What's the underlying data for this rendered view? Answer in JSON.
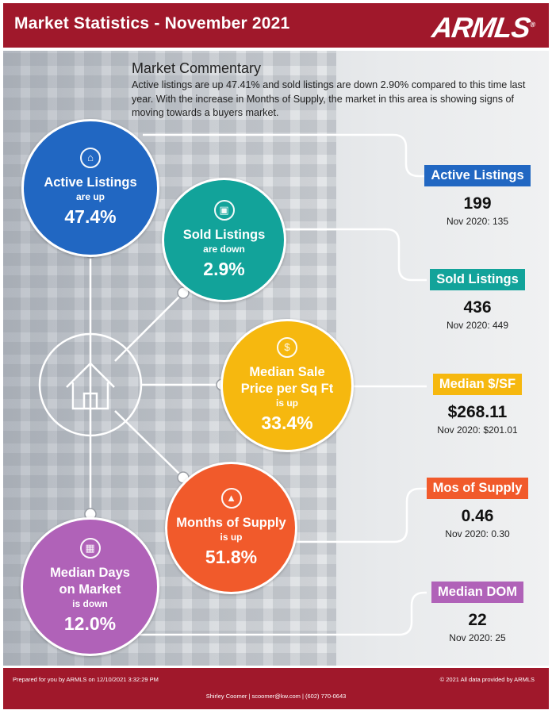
{
  "header": {
    "title": "Market Statistics - November 2021",
    "logo": "ARMLS"
  },
  "commentary": {
    "title": "Market Commentary",
    "text": "Active listings are up 47.41% and sold listings are down 2.90% compared to this time last year. With the increase in Months of Supply, the market in this area is showing signs of moving towards a buyers market."
  },
  "circles": {
    "active": {
      "title": "Active Listings",
      "sub": "are up",
      "pct": "47.4%",
      "color": "#2167c2",
      "icon": "home-search-icon"
    },
    "sold": {
      "title": "Sold Listings",
      "sub": "are down",
      "pct": "2.9%",
      "color": "#12a39a",
      "icon": "sold-sign-icon"
    },
    "price": {
      "title_1": "Median Sale",
      "title_2": "Price per Sq Ft",
      "sub": "is up",
      "pct": "33.4%",
      "color": "#f6b80f",
      "icon": "money-icon"
    },
    "supply": {
      "title": "Months of Supply",
      "sub": "is up",
      "pct": "51.8%",
      "color": "#f15a2b",
      "icon": "chart-icon"
    },
    "dom": {
      "title_1": "Median Days",
      "title_2": "on Market",
      "sub": "is down",
      "pct": "12.0%",
      "color": "#b062b8",
      "icon": "calendar-icon"
    }
  },
  "stats": {
    "active": {
      "label": "Active Listings",
      "value": "199",
      "prev": "Nov 2020: 135",
      "color": "#2167c2"
    },
    "sold": {
      "label": "Sold Listings",
      "value": "436",
      "prev": "Nov 2020: 449",
      "color": "#12a39a"
    },
    "price": {
      "label": "Median $/SF",
      "value": "$268.11",
      "prev": "Nov 2020: $201.01",
      "color": "#f6b80f"
    },
    "supply": {
      "label": "Mos of Supply",
      "value": "0.46",
      "prev": "Nov 2020: 0.30",
      "color": "#f15a2b"
    },
    "dom": {
      "label": "Median DOM",
      "value": "22",
      "prev": "Nov 2020: 25",
      "color": "#b062b8"
    }
  },
  "footer": {
    "prepared": "Prepared for you by ARMLS on 12/10/2021 3:32:29 PM",
    "copyright": "© 2021 All data provided by ARMLS",
    "agent": "Shirley Coomer | scoomer@kw.com | (602) 770-0643"
  }
}
